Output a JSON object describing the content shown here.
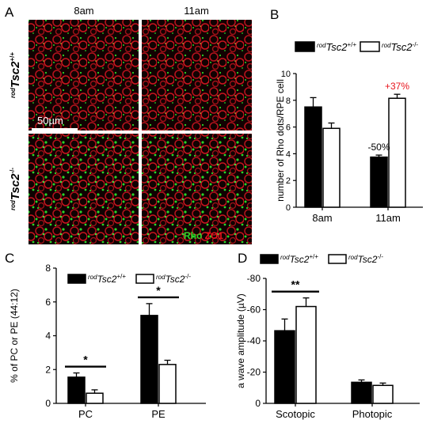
{
  "panel_letters": [
    "A",
    "B",
    "C",
    "D"
  ],
  "micrographs": {
    "col_labels": [
      "8am",
      "11am"
    ],
    "row_labels": [
      {
        "sup": "rod",
        "gene": "Tsc2",
        "geno": "+/+"
      },
      {
        "sup": "rod",
        "gene": "Tsc2",
        "geno": "-/-"
      }
    ],
    "scale_bar_label": "50µm",
    "stain_labels": {
      "green": "Rho",
      "red": "ZO1"
    },
    "colors": {
      "green": "#29d629",
      "red": "#c8141e",
      "background": "#100202"
    }
  },
  "legend_entries": [
    {
      "sup": "rod",
      "gene": "Tsc2",
      "geno": "+/+",
      "fill": "#000000"
    },
    {
      "sup": "rod",
      "gene": "Tsc2",
      "geno": "-/-",
      "fill": "#ffffff"
    }
  ],
  "chart_data": [
    {
      "panel": "B",
      "type": "bar",
      "categories": [
        "8am",
        "11am"
      ],
      "series": [
        {
          "values": [
            7.5,
            3.75
          ],
          "errors": [
            0.7,
            0.15
          ]
        },
        {
          "values": [
            5.9,
            8.15
          ],
          "errors": [
            0.4,
            0.3
          ]
        }
      ],
      "ylabel": "number of Rho dots/RPE cell",
      "ylim": [
        0,
        10
      ],
      "yticks": [
        "0",
        "2",
        "4",
        "6",
        "8",
        "10"
      ],
      "annotations": [
        {
          "text": "-50%",
          "category": "11am",
          "series": 0,
          "color": "#000000"
        },
        {
          "text": "+37%",
          "category": "11am",
          "series": 1,
          "color": "#e8141c"
        }
      ]
    },
    {
      "panel": "C",
      "type": "bar",
      "categories": [
        "PC",
        "PE"
      ],
      "series": [
        {
          "values": [
            1.55,
            5.2
          ],
          "errors": [
            0.25,
            0.7
          ]
        },
        {
          "values": [
            0.6,
            2.3
          ],
          "errors": [
            0.2,
            0.25
          ]
        }
      ],
      "ylabel": "% of PC or PE (44:12)",
      "ylim": [
        0,
        8
      ],
      "yticks": [
        "0",
        "2",
        "4",
        "6",
        "8"
      ],
      "significance": [
        {
          "category": "PC",
          "label": "*"
        },
        {
          "category": "PE",
          "label": "*"
        }
      ]
    },
    {
      "panel": "D",
      "type": "bar",
      "categories": [
        "Scotopic",
        "Photopic"
      ],
      "series": [
        {
          "values": [
            -46.5,
            -13.5
          ],
          "errors": [
            7.5,
            1.5
          ]
        },
        {
          "values": [
            -62,
            -11.5
          ],
          "errors": [
            5.5,
            1.5
          ]
        }
      ],
      "ylabel": "a wave amplitude (µV)",
      "ylim": [
        0,
        -80
      ],
      "yticks": [
        "0",
        "-20",
        "-40",
        "-60",
        "-80"
      ],
      "significance": [
        {
          "category": "Scotopic",
          "label": "**"
        }
      ]
    }
  ]
}
